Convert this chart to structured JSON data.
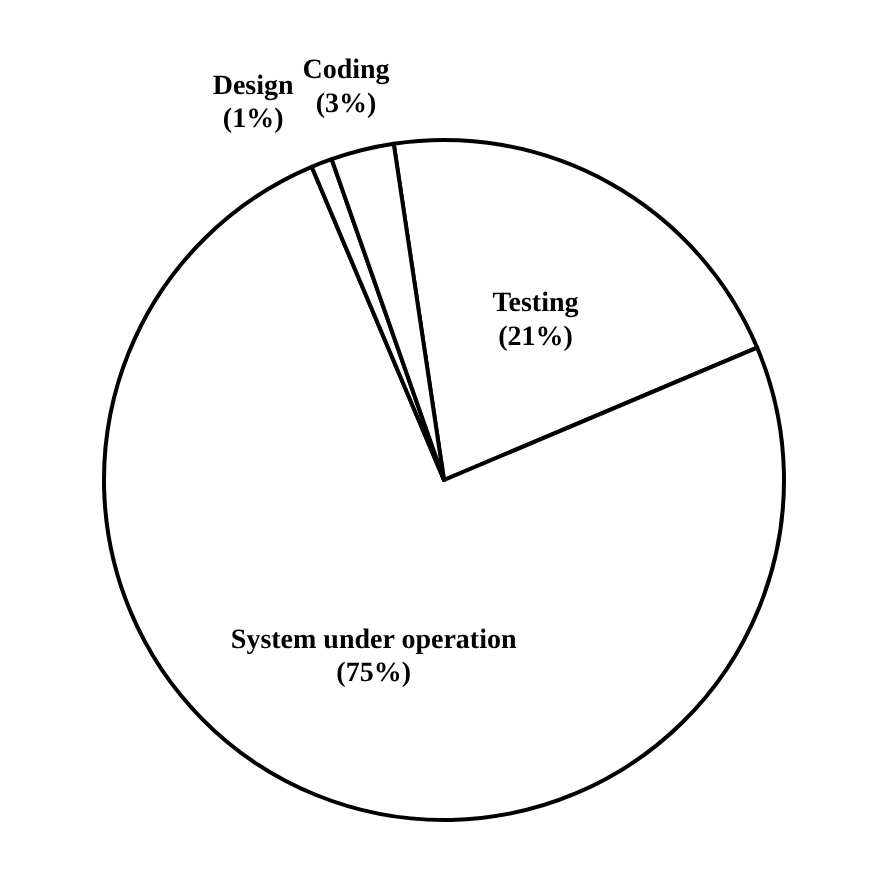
{
  "chart_data": {
    "type": "pie",
    "categories": [
      "Testing",
      "System under operation",
      "Design",
      "Coding"
    ],
    "values": [
      21,
      75,
      1,
      3
    ],
    "colors": [
      "#ffffff",
      "#ffffff",
      "#ffffff",
      "#ffffff"
    ],
    "value_labels": [
      "(21%)",
      "(75%)",
      "(1%)",
      "(3%)"
    ]
  }
}
